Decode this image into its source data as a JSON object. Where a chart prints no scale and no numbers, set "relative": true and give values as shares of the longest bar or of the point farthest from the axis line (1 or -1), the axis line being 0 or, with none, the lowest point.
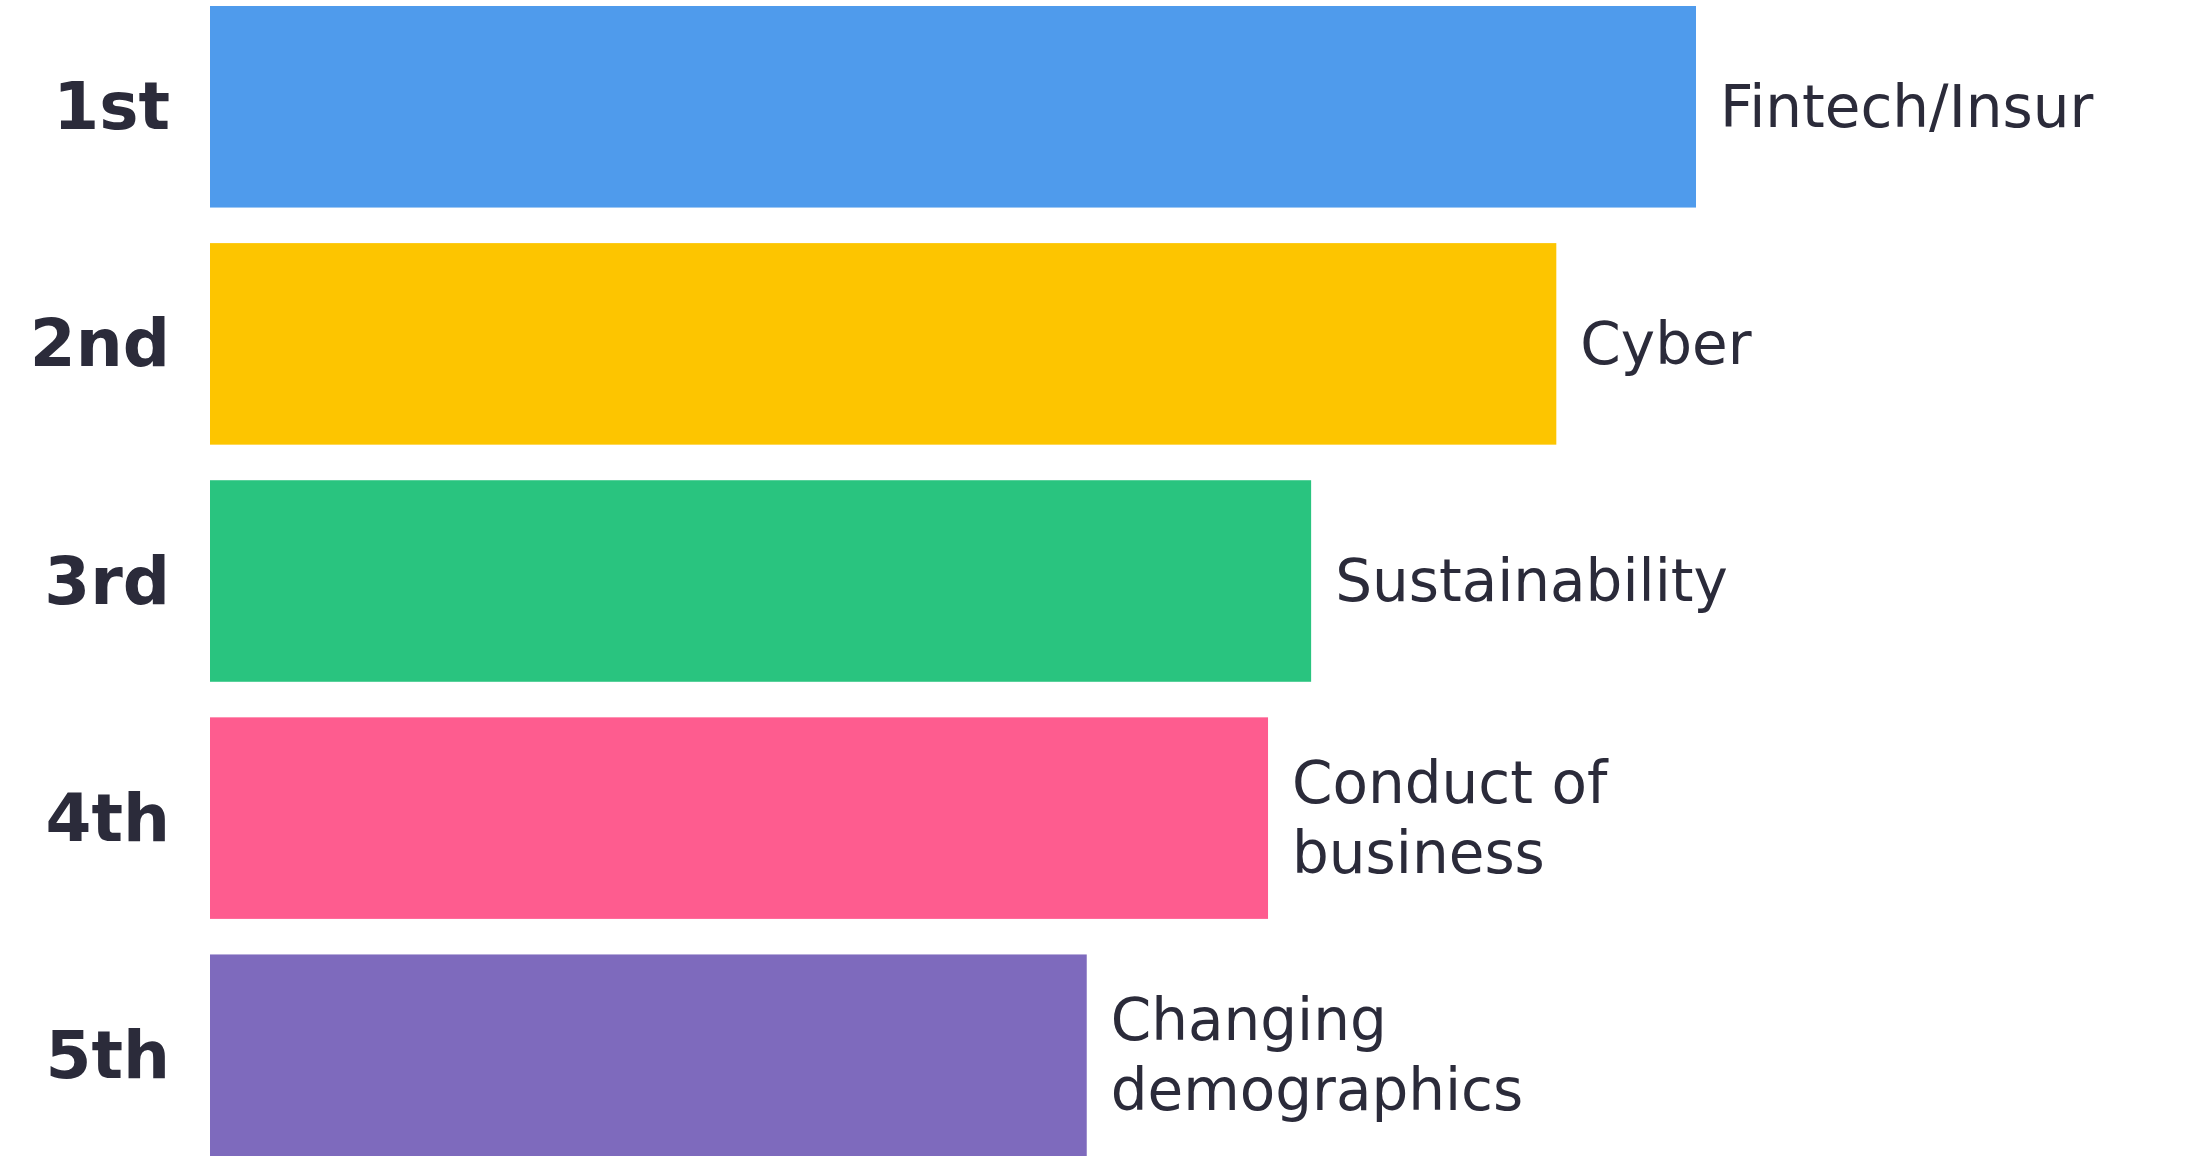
{
  "chart_data": {
    "type": "bar",
    "orientation": "horizontal",
    "relative": true,
    "categories": [
      "1st",
      "2nd",
      "3rd",
      "4th",
      "5th"
    ],
    "values": [
      1,
      0.906,
      0.741,
      0.712,
      0.59
    ],
    "colors": [
      "#4f9bec",
      "#fdc500",
      "#29c47f",
      "#fe5c8f",
      "#7e6abd"
    ],
    "annotations": [
      {
        "text": "Fintech/Insur",
        "x": 1,
        "y": "1st"
      },
      {
        "text": "Cyber",
        "x": 0.906,
        "y": "2nd"
      },
      {
        "text": "Sustainability",
        "x": 0.741,
        "y": "3rd"
      },
      {
        "text": "Conduct of\nbusiness",
        "x": 0.712,
        "y": "4th"
      },
      {
        "text": "Changing\ndemographics",
        "x": 0.59,
        "y": "5th"
      }
    ]
  }
}
